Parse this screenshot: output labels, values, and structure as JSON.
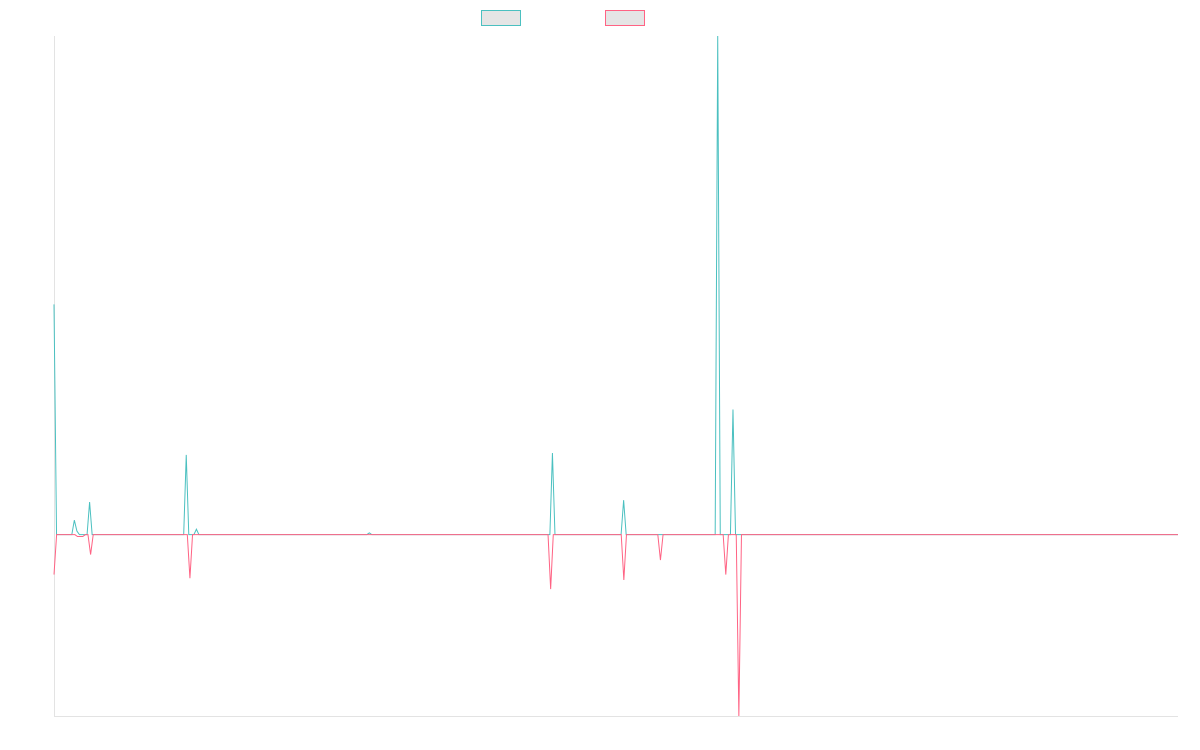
{
  "chart_data": {
    "type": "line",
    "title": "",
    "xlabel": "",
    "ylabel": "",
    "grid": false,
    "legend_position": "top-center",
    "ylim": [
      -100,
      275
    ],
    "series": [
      {
        "color": "#4bc0c0",
        "legend_fill": "#e5e5e5",
        "values": [
          127,
          0,
          0,
          0,
          0,
          0,
          0,
          0,
          8,
          2,
          0,
          0,
          0,
          0,
          18,
          0,
          0,
          0,
          0,
          0,
          0,
          0,
          0,
          0,
          0,
          0,
          0,
          0,
          0,
          0,
          0,
          0,
          0,
          0,
          0,
          0,
          0,
          0,
          0,
          0,
          0,
          0,
          0,
          0,
          0,
          0,
          0,
          0,
          0,
          0,
          0,
          0,
          44,
          0,
          0,
          0,
          3,
          0,
          0,
          0,
          0,
          0,
          0,
          0,
          0,
          0,
          0,
          0,
          0,
          0,
          0,
          0,
          0,
          0,
          0,
          0,
          0,
          0,
          0,
          0,
          0,
          0,
          0,
          0,
          0,
          0,
          0,
          0,
          0,
          0,
          0,
          0,
          0,
          0,
          0,
          0,
          0,
          0,
          0,
          0,
          0,
          0,
          0,
          0,
          0,
          0,
          0,
          0,
          0,
          0,
          0,
          0,
          0,
          0,
          0,
          0,
          0,
          0,
          0,
          0,
          0,
          0,
          0,
          0,
          1,
          0,
          0,
          0,
          0,
          0,
          0,
          0,
          0,
          0,
          0,
          0,
          0,
          0,
          0,
          0,
          0,
          0,
          0,
          0,
          0,
          0,
          0,
          0,
          0,
          0,
          0,
          0,
          0,
          0,
          0,
          0,
          0,
          0,
          0,
          0,
          0,
          0,
          0,
          0,
          0,
          0,
          0,
          0,
          0,
          0,
          0,
          0,
          0,
          0,
          0,
          0,
          0,
          0,
          0,
          0,
          0,
          0,
          0,
          0,
          0,
          0,
          0,
          0,
          0,
          0,
          0,
          0,
          0,
          0,
          0,
          0,
          45,
          0,
          0,
          0,
          0,
          0,
          0,
          0,
          0,
          0,
          0,
          0,
          0,
          0,
          0,
          0,
          0,
          0,
          0,
          0,
          0,
          0,
          0,
          0,
          0,
          0,
          0,
          0,
          19,
          0,
          0,
          0,
          0,
          0,
          0,
          0,
          0,
          0,
          0,
          0,
          0,
          0,
          0,
          0,
          0,
          0,
          0,
          0,
          0,
          0,
          0,
          0,
          0,
          0,
          0,
          0,
          0,
          0,
          0,
          0,
          0,
          0,
          0,
          0,
          0,
          275,
          0,
          0,
          0,
          0,
          0,
          69,
          0,
          0,
          0,
          0,
          0,
          0,
          0,
          0,
          0,
          0,
          0,
          0,
          0,
          0,
          0,
          0,
          0,
          0,
          0,
          0,
          0,
          0,
          0,
          0,
          0,
          0,
          0,
          0,
          0,
          0,
          0,
          0,
          0,
          0,
          0,
          0,
          0,
          0,
          0,
          0,
          0,
          0,
          0,
          0,
          0,
          0,
          0,
          0,
          0,
          0,
          0,
          0,
          0,
          0,
          0,
          0,
          0,
          0,
          0,
          0,
          0,
          0,
          0,
          0,
          0,
          0,
          0,
          0,
          0,
          0,
          0,
          0,
          0,
          0,
          0,
          0,
          0,
          0,
          0,
          0,
          0,
          0,
          0,
          0,
          0,
          0,
          0,
          0,
          0,
          0,
          0,
          0,
          0,
          0,
          0,
          0,
          0,
          0,
          0,
          0,
          0,
          0,
          0,
          0,
          0,
          0,
          0,
          0,
          0,
          0,
          0,
          0,
          0,
          0,
          0,
          0,
          0,
          0,
          0,
          0,
          0,
          0,
          0,
          0,
          0,
          0,
          0,
          0,
          0,
          0,
          0,
          0,
          0,
          0,
          0,
          0,
          0,
          0,
          0,
          0,
          0,
          0,
          0,
          0,
          0,
          0,
          0,
          0,
          0,
          0,
          0,
          0,
          0,
          0,
          0,
          0,
          0,
          0,
          0,
          0,
          0,
          0,
          0,
          0,
          0,
          0,
          0,
          0,
          0,
          0,
          0,
          0,
          0,
          0,
          0
        ]
      },
      {
        "color": "#ff6384",
        "legend_fill": "#e5e5e5",
        "values": [
          -22,
          0,
          0,
          0,
          0,
          0,
          0,
          0,
          0,
          -1,
          -1,
          -1,
          0,
          0,
          -11,
          0,
          0,
          0,
          0,
          0,
          0,
          0,
          0,
          0,
          0,
          0,
          0,
          0,
          0,
          0,
          0,
          0,
          0,
          0,
          0,
          0,
          0,
          0,
          0,
          0,
          0,
          0,
          0,
          0,
          0,
          0,
          0,
          0,
          0,
          0,
          0,
          0,
          -24,
          0,
          0,
          0,
          0,
          0,
          0,
          0,
          0,
          0,
          0,
          0,
          0,
          0,
          0,
          0,
          0,
          0,
          0,
          0,
          0,
          0,
          0,
          0,
          0,
          0,
          0,
          0,
          0,
          0,
          0,
          0,
          0,
          0,
          0,
          0,
          0,
          0,
          0,
          0,
          0,
          0,
          0,
          0,
          0,
          0,
          0,
          0,
          0,
          0,
          0,
          0,
          0,
          0,
          0,
          0,
          0,
          0,
          0,
          0,
          0,
          0,
          0,
          0,
          0,
          0,
          0,
          0,
          0,
          0,
          0,
          0,
          0,
          0,
          0,
          0,
          0,
          0,
          0,
          0,
          0,
          0,
          0,
          0,
          0,
          0,
          0,
          0,
          0,
          0,
          0,
          0,
          0,
          0,
          0,
          0,
          0,
          0,
          0,
          0,
          0,
          0,
          0,
          0,
          0,
          0,
          0,
          0,
          0,
          0,
          0,
          0,
          0,
          0,
          0,
          0,
          0,
          0,
          0,
          0,
          0,
          0,
          0,
          0,
          0,
          0,
          0,
          0,
          0,
          0,
          0,
          0,
          0,
          0,
          0,
          0,
          0,
          0,
          -30,
          0,
          0,
          0,
          0,
          0,
          0,
          0,
          0,
          0,
          0,
          0,
          0,
          0,
          0,
          0,
          0,
          0,
          0,
          0,
          0,
          0,
          0,
          0,
          0,
          0,
          0,
          0,
          -25,
          0,
          0,
          0,
          0,
          0,
          0,
          0,
          0,
          0,
          0,
          0,
          0,
          0,
          -14,
          0,
          0,
          0,
          0,
          0,
          0,
          0,
          0,
          0,
          0,
          0,
          0,
          0,
          0,
          0,
          0,
          0,
          0,
          0,
          0,
          0,
          0,
          0,
          0,
          -22,
          0,
          0,
          0,
          0,
          -100,
          0,
          0,
          0,
          0,
          0,
          0,
          0,
          0,
          0,
          0,
          0,
          0,
          0,
          0,
          0,
          0,
          0,
          0,
          0,
          0,
          0,
          0,
          0,
          0,
          0,
          0,
          0,
          0,
          0,
          0,
          0,
          0,
          0,
          0,
          0,
          0,
          0,
          0,
          0,
          0,
          0,
          0,
          0,
          0,
          0,
          0,
          0,
          0,
          0,
          0,
          0,
          0,
          0,
          0,
          0,
          0,
          0,
          0,
          0,
          0,
          0,
          0,
          0,
          0,
          0,
          0,
          0,
          0,
          0,
          0,
          0,
          0,
          0,
          0,
          0,
          0,
          0,
          0,
          0,
          0,
          0,
          0,
          0,
          0,
          0,
          0,
          0,
          0,
          0,
          0,
          0,
          0,
          0,
          0,
          0,
          0,
          0,
          0,
          0,
          0,
          0,
          0,
          0,
          0,
          0,
          0,
          0,
          0,
          0,
          0,
          0,
          0,
          0,
          0,
          0,
          0,
          0,
          0,
          0,
          0,
          0,
          0,
          0,
          0,
          0,
          0,
          0,
          0,
          0,
          0,
          0,
          0,
          0,
          0,
          0,
          0,
          0,
          0,
          0,
          0,
          0,
          0,
          0,
          0,
          0,
          0,
          0,
          0,
          0,
          0,
          0,
          0,
          0,
          0,
          0,
          0,
          0,
          0,
          0,
          0,
          0,
          0,
          0,
          0,
          0,
          0,
          0,
          0
        ]
      }
    ]
  }
}
